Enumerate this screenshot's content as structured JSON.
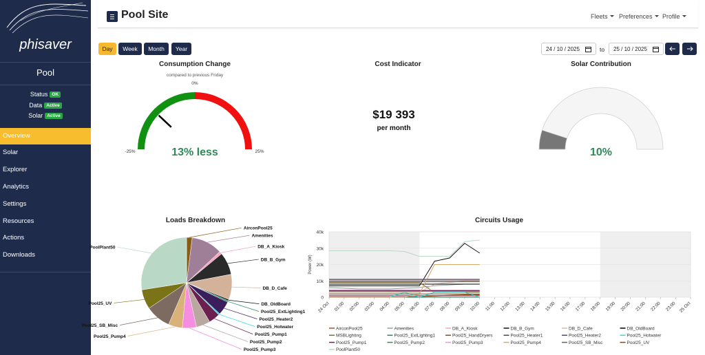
{
  "sidebar": {
    "brand": "phisaver",
    "site": "Pool",
    "status": [
      {
        "label": "Status",
        "badge": "OK"
      },
      {
        "label": "Data",
        "badge": "Active"
      },
      {
        "label": "Solar",
        "badge": "Active"
      }
    ],
    "nav": [
      "Overview",
      "Solar",
      "Explorer",
      "Analytics",
      "Settings",
      "Resources",
      "Actions",
      "Downloads"
    ]
  },
  "header": {
    "title": "Pool Site",
    "menu": [
      "Fleets",
      "Preferences",
      "Profile"
    ]
  },
  "controls": {
    "periods": [
      "Day",
      "Week",
      "Month",
      "Year"
    ],
    "from": "24 / 10 / 2025",
    "separator": "to",
    "until": "25 / 10 / 2025"
  },
  "cost": {
    "title": "Cost Indicator",
    "value": "$19 393",
    "unit": "per month"
  },
  "chart_data": [
    {
      "type": "gauge",
      "title": "Consumption Change",
      "subtitle": "compared to previous Friday",
      "range": [
        -25,
        25
      ],
      "ticks": [
        {
          "value": -25,
          "label": "-25%"
        },
        {
          "value": 0,
          "label": "0%"
        },
        {
          "value": 25,
          "label": "25%"
        }
      ],
      "bands": [
        {
          "from": -25,
          "to": 0,
          "color": "#119111"
        },
        {
          "from": 0,
          "to": 25,
          "color": "#f01010"
        }
      ],
      "value": -13,
      "value_label": "13% less",
      "value_label_color": "#2e8b57",
      "needle_color": "#000000"
    },
    {
      "type": "gauge",
      "title": "Solar Contribution",
      "range": [
        0,
        100
      ],
      "value": 10,
      "value_label": "10%",
      "value_label_color": "#2e8b57",
      "color": "#777777",
      "track_color": "#f5f5f5"
    },
    {
      "type": "pie",
      "title": "Loads Breakdown",
      "categories": [
        "AirconPool25",
        "Amenities",
        "DB_A_Kiosk",
        "DB_B_Gym",
        "DB_D_Cafe",
        "DB_OldBoard",
        "Pool25_ExtLighting1",
        "Pool25_Heater2",
        "Pool25_Hotwater",
        "Pool25_Pump1",
        "Pool25_Pump2",
        "Pool25_Pump3",
        "Pool25_Pump4",
        "Pool25_SB_Misc",
        "Pool25_UV",
        "PoolPlant50"
      ],
      "values": [
        2,
        11,
        1,
        8,
        9,
        0.5,
        0.5,
        5,
        0.5,
        4,
        5,
        5,
        5,
        9,
        7,
        27.5
      ],
      "colors": [
        "#8b5a14",
        "#9e7f97",
        "#f4a6c0",
        "#2a2a2a",
        "#d4b29a",
        "#111111",
        "#1e8c5a",
        "#3a1f5c",
        "#2fd6e6",
        "#6b2050",
        "#b9a7a0",
        "#f78de0",
        "#d9b27a",
        "#7d6a60",
        "#7a7318",
        "#b9d9c6"
      ]
    },
    {
      "type": "line",
      "title": "Circuits Usage",
      "y_label": "Power (W)",
      "ylim": [
        0,
        40000
      ],
      "yticks": [
        0,
        {
          "value": 10000,
          "label": "10k"
        },
        {
          "value": 20000,
          "label": "20k"
        },
        {
          "value": 30000,
          "label": "30k"
        },
        {
          "value": 40000,
          "label": "40k"
        }
      ],
      "grid": true,
      "categories": [
        "24 Oct",
        "01:00",
        "02:00",
        "03:00",
        "04:00",
        "05:00",
        "06:00",
        "07:00",
        "08:00",
        "09:00",
        "10:00",
        "11:00",
        "12:00",
        "13:00",
        "14:00",
        "15:00",
        "16:00",
        "17:00",
        "18:00",
        "19:00",
        "20:00",
        "21:00",
        "22:00",
        "23:00",
        "25 Oct"
      ],
      "series": [
        {
          "name": "AirconPool25",
          "color": "#a0522d",
          "values": [
            1000,
            1000,
            1000,
            1000,
            1000,
            1000,
            1000,
            1000,
            1000,
            1000,
            1000,
            null,
            null,
            null,
            null,
            null,
            null,
            null,
            null,
            null,
            null,
            null,
            null,
            null,
            null
          ]
        },
        {
          "name": "Amenities",
          "color": "#8fa3a0",
          "values": [
            6000,
            5500,
            5000,
            5000,
            5000,
            5500,
            6000,
            7000,
            7500,
            8000,
            8000,
            null,
            null,
            null,
            null,
            null,
            null,
            null,
            null,
            null,
            null,
            null,
            null,
            null,
            null
          ]
        },
        {
          "name": "DB_A_Kiosk",
          "color": "#f4a6c0",
          "values": [
            500,
            500,
            500,
            500,
            500,
            500,
            500,
            500,
            500,
            500,
            500,
            null,
            null,
            null,
            null,
            null,
            null,
            null,
            null,
            null,
            null,
            null,
            null,
            null,
            null
          ]
        },
        {
          "name": "DB_B_Gym",
          "color": "#111111",
          "values": [
            7000,
            7000,
            7000,
            7000,
            7000,
            7000,
            7000,
            22000,
            24000,
            33000,
            27000,
            null,
            null,
            null,
            null,
            null,
            null,
            null,
            null,
            null,
            null,
            null,
            null,
            null,
            null
          ]
        },
        {
          "name": "DB_D_Cafe",
          "color": "#e0b8a0",
          "values": [
            3000,
            3000,
            3000,
            3000,
            3000,
            3000,
            3000,
            8000,
            9000,
            10000,
            10000,
            null,
            null,
            null,
            null,
            null,
            null,
            null,
            null,
            null,
            null,
            null,
            null,
            null,
            null
          ]
        },
        {
          "name": "DB_OldBoard",
          "color": "#000000",
          "values": [
            8000,
            8000,
            8000,
            8000,
            8000,
            8000,
            8000,
            8000,
            8000,
            8000,
            8000,
            null,
            null,
            null,
            null,
            null,
            null,
            null,
            null,
            null,
            null,
            null,
            null,
            null,
            null
          ]
        },
        {
          "name": "MSBLighting",
          "color": "#7b6a2f",
          "values": [
            9000,
            9000,
            9000,
            9000,
            9000,
            9000,
            9000,
            3000,
            3000,
            3000,
            3000,
            null,
            null,
            null,
            null,
            null,
            null,
            null,
            null,
            null,
            null,
            null,
            null,
            null,
            null
          ]
        },
        {
          "name": "Pool25_ExtLighting1",
          "color": "#1e8c5a",
          "values": [
            0,
            0,
            0,
            0,
            0,
            0,
            0,
            0,
            0,
            0,
            0,
            null,
            null,
            null,
            null,
            null,
            null,
            null,
            null,
            null,
            null,
            null,
            null,
            null,
            null
          ]
        },
        {
          "name": "Pool25_HandDryers",
          "color": "#8b4513",
          "values": [
            200,
            200,
            200,
            200,
            200,
            200,
            300,
            800,
            1200,
            1500,
            1500,
            null,
            null,
            null,
            null,
            null,
            null,
            null,
            null,
            null,
            null,
            null,
            null,
            null,
            null
          ]
        },
        {
          "name": "Pool25_Heater1",
          "color": "#444444",
          "values": [
            9500,
            9500,
            9500,
            9500,
            9500,
            9500,
            9500,
            9500,
            9500,
            9500,
            9500,
            null,
            null,
            null,
            null,
            null,
            null,
            null,
            null,
            null,
            null,
            null,
            null,
            null,
            null
          ]
        },
        {
          "name": "Pool25_Heater2",
          "color": "#5a3d6e",
          "values": [
            10500,
            10500,
            10500,
            10500,
            10500,
            10500,
            10500,
            10500,
            10500,
            10500,
            10500,
            null,
            null,
            null,
            null,
            null,
            null,
            null,
            null,
            null,
            null,
            null,
            null,
            null,
            null
          ]
        },
        {
          "name": "Pool25_Hotwater",
          "color": "#2fd6e6",
          "values": [
            0,
            0,
            0,
            0,
            0,
            3000,
            0,
            3000,
            3000,
            3000,
            0,
            null,
            null,
            null,
            null,
            null,
            null,
            null,
            null,
            null,
            null,
            null,
            null,
            null,
            null
          ]
        },
        {
          "name": "Pool25_Pump1",
          "color": "#6b2050",
          "values": [
            4000,
            4000,
            4000,
            4000,
            4000,
            4000,
            4000,
            4000,
            4000,
            4000,
            4000,
            null,
            null,
            null,
            null,
            null,
            null,
            null,
            null,
            null,
            null,
            null,
            null,
            null,
            null
          ]
        },
        {
          "name": "Pool25_Pump2",
          "color": "#2e8b57",
          "values": [
            3500,
            3500,
            3500,
            3500,
            3500,
            3500,
            3500,
            3500,
            3500,
            3500,
            3500,
            null,
            null,
            null,
            null,
            null,
            null,
            null,
            null,
            null,
            null,
            null,
            null,
            null,
            null
          ]
        },
        {
          "name": "Pool25_Pump3",
          "color": "#f78de0",
          "values": [
            4500,
            4500,
            4500,
            4500,
            4500,
            4500,
            4500,
            4500,
            4500,
            4500,
            4500,
            null,
            null,
            null,
            null,
            null,
            null,
            null,
            null,
            null,
            null,
            null,
            null,
            null,
            null
          ]
        },
        {
          "name": "Pool25_Pump4",
          "color": "#d9a66a",
          "values": [
            0,
            0,
            0,
            0,
            0,
            0,
            2000,
            20000,
            20000,
            20000,
            20000,
            null,
            null,
            null,
            null,
            null,
            null,
            null,
            null,
            null,
            null,
            null,
            null,
            null,
            null
          ]
        },
        {
          "name": "Pool25_SB_Misc",
          "color": "#6b5e5e",
          "values": [
            11000,
            11000,
            11000,
            11000,
            11000,
            11000,
            11000,
            11000,
            11000,
            11000,
            11000,
            null,
            null,
            null,
            null,
            null,
            null,
            null,
            null,
            null,
            null,
            null,
            null,
            null,
            null
          ]
        },
        {
          "name": "Pool25_UV",
          "color": "#8b4500",
          "values": [
            2000,
            2000,
            2000,
            2000,
            2000,
            2000,
            2000,
            2000,
            2000,
            2000,
            2000,
            null,
            null,
            null,
            null,
            null,
            null,
            null,
            null,
            null,
            null,
            null,
            null,
            null,
            null
          ]
        },
        {
          "name": "PoolPlant50",
          "color": "#b5d8c4",
          "values": [
            28500,
            28500,
            28500,
            28500,
            28500,
            28000,
            25000,
            25000,
            25000,
            34000,
            35000,
            null,
            null,
            null,
            null,
            null,
            null,
            null,
            null,
            null,
            null,
            null,
            null,
            null,
            null
          ]
        }
      ]
    }
  ]
}
